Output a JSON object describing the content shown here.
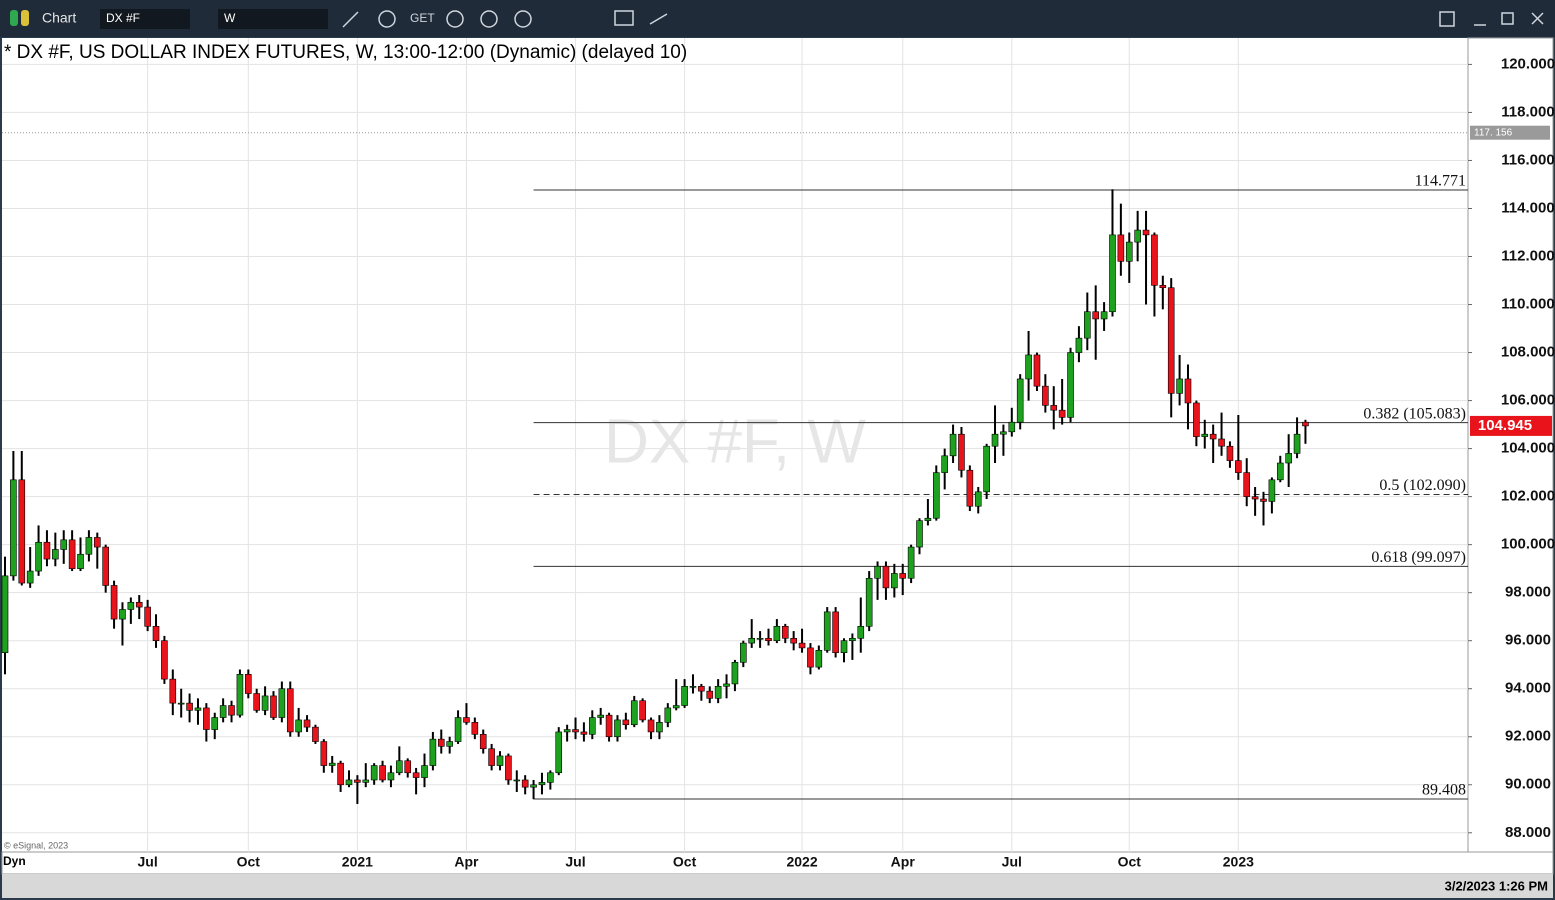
{
  "toolbar": {
    "app": "Chart",
    "symbol": "DX #F",
    "interval": "W",
    "get": "GET"
  },
  "status": {
    "mode": "Dyn",
    "datetime": "3/2/2023 1:26 PM",
    "copyright": "© eSignal, 2023"
  },
  "chart_data": {
    "type": "candlestick",
    "title": "* DX #F, US DOLLAR INDEX FUTURES, W, 13:00-12:00 (Dynamic) (delayed 10)",
    "watermark": "DX #F, W",
    "colors": {
      "up": "#1ea11e",
      "down": "#e8131b"
    },
    "ylim": [
      87.2,
      121.1
    ],
    "yticks": [
      {
        "value": 88,
        "label": "88.000"
      },
      {
        "value": 90,
        "label": "90.000"
      },
      {
        "value": 92,
        "label": "92.000"
      },
      {
        "value": 94,
        "label": "94.000"
      },
      {
        "value": 96,
        "label": "96.000"
      },
      {
        "value": 98,
        "label": "98.000"
      },
      {
        "value": 100,
        "label": "100.000"
      },
      {
        "value": 102,
        "label": "102.000"
      },
      {
        "value": 104,
        "label": "104.000"
      },
      {
        "value": 106,
        "label": "106.000"
      },
      {
        "value": 108,
        "label": "108.000"
      },
      {
        "value": 110,
        "label": "110.000"
      },
      {
        "value": 112,
        "label": "112.000"
      },
      {
        "value": 114,
        "label": "114.000"
      },
      {
        "value": 116,
        "label": "116.000"
      },
      {
        "value": 118,
        "label": "118.000"
      },
      {
        "value": 120,
        "label": "120.000"
      }
    ],
    "xticks": [
      {
        "value": 17,
        "label": "Jul"
      },
      {
        "value": 29,
        "label": "Oct"
      },
      {
        "value": 42,
        "label": "2021"
      },
      {
        "value": 55,
        "label": "Apr"
      },
      {
        "value": 68,
        "label": "Jul"
      },
      {
        "value": 81,
        "label": "Oct"
      },
      {
        "value": 95,
        "label": "2022"
      },
      {
        "value": 107,
        "label": "Apr"
      },
      {
        "value": 120,
        "label": "Jul"
      },
      {
        "value": 134,
        "label": "Oct"
      },
      {
        "value": 147,
        "label": "2023"
      }
    ],
    "last_price": {
      "value": 104.945,
      "label": "104.945"
    },
    "cursor_level": {
      "value": 117.156,
      "label": "117. 156"
    },
    "levels": [
      {
        "value": 114.771,
        "label": "114.771",
        "style": "solid"
      },
      {
        "value": 105.083,
        "label": "0.382 (105.083)",
        "style": "solid"
      },
      {
        "value": 102.09,
        "label": "0.5 (102.090)",
        "style": "dashed"
      },
      {
        "value": 99.097,
        "label": "0.618 (99.097)",
        "style": "solid"
      },
      {
        "value": 89.408,
        "label": "89.408",
        "style": "solid"
      }
    ],
    "levels_start": 63,
    "ohlc": [
      [
        95.5,
        99.5,
        94.6,
        98.7
      ],
      [
        98.7,
        103.9,
        98.5,
        102.7
      ],
      [
        102.7,
        103.9,
        98.3,
        98.4
      ],
      [
        98.4,
        99.9,
        98.2,
        98.9
      ],
      [
        98.9,
        100.8,
        98.7,
        100.1
      ],
      [
        100.1,
        100.6,
        99.1,
        99.4
      ],
      [
        99.4,
        100.5,
        99.1,
        99.8
      ],
      [
        99.8,
        100.6,
        99.2,
        100.2
      ],
      [
        100.2,
        100.6,
        98.9,
        99
      ],
      [
        99,
        100.3,
        98.9,
        99.6
      ],
      [
        99.6,
        100.6,
        99.3,
        100.3
      ],
      [
        100.3,
        100.5,
        99,
        99.9
      ],
      [
        99.9,
        100,
        98,
        98.3
      ],
      [
        98.3,
        98.5,
        96.5,
        96.9
      ],
      [
        96.9,
        97.6,
        95.8,
        97.3
      ],
      [
        97.3,
        97.8,
        96.7,
        97.6
      ],
      [
        97.6,
        97.9,
        96.9,
        97.4
      ],
      [
        97.4,
        97.7,
        96.4,
        96.6
      ],
      [
        96.6,
        97.1,
        95.7,
        96
      ],
      [
        96,
        96.2,
        94.2,
        94.4
      ],
      [
        94.4,
        94.8,
        92.9,
        93.4
      ],
      [
        93.4,
        94,
        92.8,
        93.4
      ],
      [
        93.4,
        93.8,
        92.6,
        93.1
      ],
      [
        93.1,
        93.6,
        92.5,
        93.2
      ],
      [
        93.2,
        93.4,
        91.8,
        92.3
      ],
      [
        92.3,
        93,
        91.9,
        92.8
      ],
      [
        92.8,
        93.6,
        92.6,
        93.3
      ],
      [
        93.3,
        93.5,
        92.6,
        92.9
      ],
      [
        92.9,
        94.8,
        92.8,
        94.6
      ],
      [
        94.6,
        94.8,
        93.6,
        93.8
      ],
      [
        93.8,
        94,
        93,
        93.1
      ],
      [
        93.1,
        94.1,
        92.9,
        93.7
      ],
      [
        93.7,
        93.9,
        92.7,
        92.8
      ],
      [
        92.8,
        94.3,
        92.6,
        94
      ],
      [
        94,
        94.3,
        92,
        92.2
      ],
      [
        92.2,
        93.2,
        92,
        92.7
      ],
      [
        92.7,
        92.9,
        92.2,
        92.4
      ],
      [
        92.4,
        92.5,
        91.7,
        91.8
      ],
      [
        91.8,
        91.9,
        90.5,
        90.8
      ],
      [
        90.8,
        91.2,
        90.5,
        90.9
      ],
      [
        90.9,
        91,
        89.7,
        90
      ],
      [
        90,
        90.6,
        89.9,
        90.2
      ],
      [
        90.2,
        90.4,
        89.2,
        90.1
      ],
      [
        90.1,
        90.9,
        89.9,
        90.2
      ],
      [
        90.2,
        90.9,
        90,
        90.8
      ],
      [
        90.8,
        91,
        90.1,
        90.2
      ],
      [
        90.2,
        90.8,
        89.9,
        90.5
      ],
      [
        90.5,
        91.6,
        90.4,
        91
      ],
      [
        91,
        91.1,
        90.3,
        90.5
      ],
      [
        90.5,
        90.7,
        89.6,
        90.3
      ],
      [
        90.3,
        91.3,
        89.9,
        90.8
      ],
      [
        90.8,
        92.2,
        90.6,
        91.9
      ],
      [
        91.9,
        92.3,
        91.3,
        91.6
      ],
      [
        91.6,
        92,
        91.3,
        91.8
      ],
      [
        91.8,
        93.1,
        91.7,
        92.8
      ],
      [
        92.8,
        93.4,
        92.5,
        92.6
      ],
      [
        92.6,
        92.8,
        91.9,
        92.1
      ],
      [
        92.1,
        92.3,
        91.3,
        91.5
      ],
      [
        91.5,
        91.7,
        90.6,
        90.8
      ],
      [
        90.8,
        91.4,
        90.6,
        91.2
      ],
      [
        91.2,
        91.3,
        90,
        90.2
      ],
      [
        90.2,
        90.6,
        89.7,
        90.2
      ],
      [
        90.2,
        90.4,
        89.6,
        89.9
      ],
      [
        89.9,
        90.2,
        89.4,
        90
      ],
      [
        90,
        90.5,
        89.6,
        90.1
      ],
      [
        90.1,
        90.6,
        89.8,
        90.5
      ],
      [
        90.5,
        92.4,
        90.4,
        92.2
      ],
      [
        92.2,
        92.5,
        91.8,
        92.3
      ],
      [
        92.3,
        92.8,
        91.9,
        92.2
      ],
      [
        92.2,
        92.6,
        91.8,
        92.1
      ],
      [
        92.1,
        93.1,
        91.9,
        92.8
      ],
      [
        92.8,
        93.2,
        92.5,
        92.9
      ],
      [
        92.9,
        93,
        91.8,
        92
      ],
      [
        92,
        92.9,
        91.8,
        92.7
      ],
      [
        92.7,
        93,
        92.3,
        92.5
      ],
      [
        92.5,
        93.7,
        92.4,
        93.5
      ],
      [
        93.5,
        93.6,
        92.6,
        92.7
      ],
      [
        92.7,
        92.8,
        91.9,
        92.2
      ],
      [
        92.2,
        92.9,
        91.9,
        92.6
      ],
      [
        92.6,
        93.4,
        92.4,
        93.2
      ],
      [
        93.2,
        94.4,
        93.1,
        93.3
      ],
      [
        93.3,
        94.4,
        93.2,
        94.1
      ],
      [
        94.1,
        94.6,
        93.8,
        94.1
      ],
      [
        94.1,
        94.2,
        93.5,
        93.9
      ],
      [
        93.9,
        94.1,
        93.4,
        93.6
      ],
      [
        93.6,
        94.4,
        93.4,
        94.1
      ],
      [
        94.1,
        94.6,
        93.6,
        94.2
      ],
      [
        94.2,
        95.2,
        93.9,
        95.1
      ],
      [
        95.1,
        96,
        94.9,
        95.9
      ],
      [
        95.9,
        96.9,
        95.7,
        96.1
      ],
      [
        96.1,
        96.4,
        95.7,
        96.1
      ],
      [
        96.1,
        96.5,
        95.8,
        96
      ],
      [
        96,
        96.9,
        95.9,
        96.6
      ],
      [
        96.6,
        96.7,
        95.9,
        96.1
      ],
      [
        96.1,
        96.4,
        95.6,
        95.9
      ],
      [
        95.9,
        96.5,
        95.5,
        95.7
      ],
      [
        95.7,
        95.9,
        94.6,
        94.9
      ],
      [
        94.9,
        95.8,
        94.8,
        95.6
      ],
      [
        95.6,
        97.4,
        95.5,
        97.2
      ],
      [
        97.2,
        97.4,
        95.3,
        95.5
      ],
      [
        95.5,
        96.1,
        95.1,
        96
      ],
      [
        96,
        96.3,
        95.2,
        96.1
      ],
      [
        96.1,
        97.8,
        95.5,
        96.6
      ],
      [
        96.6,
        98.9,
        96.4,
        98.6
      ],
      [
        98.6,
        99.3,
        97.7,
        99.1
      ],
      [
        99.1,
        99.3,
        97.7,
        98.2
      ],
      [
        98.2,
        99.2,
        97.8,
        98.8
      ],
      [
        98.8,
        99.2,
        97.9,
        98.6
      ],
      [
        98.6,
        100,
        98.4,
        99.9
      ],
      [
        99.9,
        101.1,
        99.6,
        101
      ],
      [
        101,
        101.9,
        100.8,
        101.1
      ],
      [
        101.1,
        103.3,
        101,
        103
      ],
      [
        103,
        104,
        102.3,
        103.7
      ],
      [
        103.7,
        105,
        103.4,
        104.6
      ],
      [
        104.6,
        104.9,
        102.8,
        103.1
      ],
      [
        103.1,
        103.3,
        101.4,
        101.6
      ],
      [
        101.6,
        102.4,
        101.3,
        102.2
      ],
      [
        102.2,
        104.2,
        101.9,
        104.1
      ],
      [
        104.1,
        105.8,
        103.4,
        104.6
      ],
      [
        104.6,
        105,
        103.7,
        104.7
      ],
      [
        104.7,
        105.7,
        104.5,
        105.1
      ],
      [
        105.1,
        107.1,
        104.8,
        106.9
      ],
      [
        106.9,
        108.9,
        106,
        107.9
      ],
      [
        107.9,
        108,
        106.4,
        106.6
      ],
      [
        106.6,
        107.1,
        105.5,
        105.8
      ],
      [
        105.8,
        106.6,
        104.8,
        105.6
      ],
      [
        105.6,
        106.9,
        105,
        105.3
      ],
      [
        105.3,
        108.2,
        105.1,
        108
      ],
      [
        108,
        109.1,
        107.6,
        108.6
      ],
      [
        108.6,
        110.5,
        108.1,
        109.7
      ],
      [
        109.7,
        110.8,
        107.7,
        109.4
      ],
      [
        109.4,
        110.1,
        108.9,
        109.7
      ],
      [
        109.7,
        114.8,
        109.5,
        112.9
      ],
      [
        112.9,
        114.2,
        111.2,
        111.8
      ],
      [
        111.8,
        113,
        110.9,
        112.6
      ],
      [
        112.6,
        113.9,
        111.8,
        113.1
      ],
      [
        113.1,
        113.9,
        110,
        112.9
      ],
      [
        112.9,
        113,
        109.5,
        110.8
      ],
      [
        110.8,
        111.2,
        109.8,
        110.7
      ],
      [
        110.7,
        111.1,
        105.3,
        106.3
      ],
      [
        106.3,
        107.9,
        105.8,
        106.9
      ],
      [
        106.9,
        107.5,
        104.8,
        105.9
      ],
      [
        105.9,
        106,
        104.1,
        104.5
      ],
      [
        104.5,
        105.2,
        104,
        104.6
      ],
      [
        104.6,
        105,
        103.4,
        104.4
      ],
      [
        104.4,
        105.5,
        103.7,
        104.1
      ],
      [
        104.1,
        104.3,
        103.2,
        103.5
      ],
      [
        103.5,
        105.4,
        102.7,
        103
      ],
      [
        103,
        103.6,
        101.6,
        102
      ],
      [
        102,
        102.4,
        101.2,
        101.9
      ],
      [
        101.9,
        102.2,
        100.8,
        101.8
      ],
      [
        101.8,
        102.8,
        101.3,
        102.7
      ],
      [
        102.7,
        103.7,
        102.6,
        103.4
      ],
      [
        103.4,
        104.6,
        102.4,
        103.8
      ],
      [
        103.8,
        105.3,
        103.6,
        104.6
      ],
      [
        105.1,
        105.2,
        104.2,
        104.945
      ]
    ]
  }
}
